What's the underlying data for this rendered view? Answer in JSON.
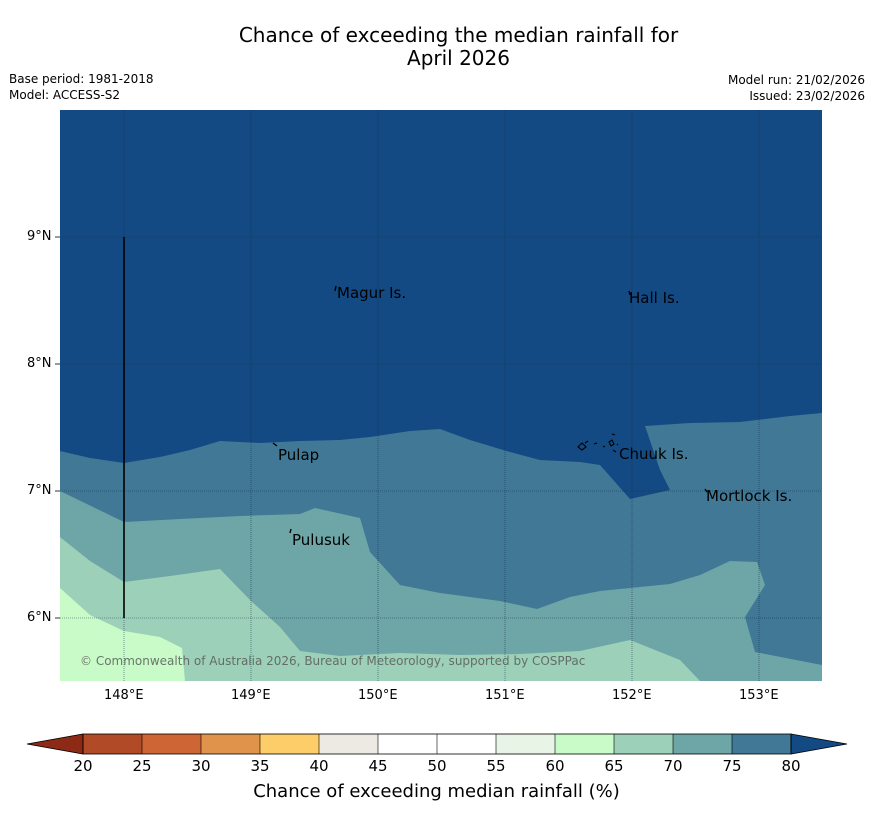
{
  "title": {
    "line1": "Chance of exceeding the median rainfall for",
    "line2": "April 2026"
  },
  "meta": {
    "base_period": "Base period: 1981-2018",
    "model": "Model: ACCESS-S2",
    "model_run": "Model run: 21/02/2026",
    "issued": "Issued: 23/02/2026"
  },
  "map": {
    "lat_ticks": [
      "9°N",
      "8°N",
      "7°N",
      "6°N"
    ],
    "lon_ticks": [
      "148°E",
      "149°E",
      "150°E",
      "151°E",
      "152°E",
      "153°E"
    ],
    "places": [
      "Magur Is.",
      "Hall Is.",
      "Pulap",
      "Chuuk Is.",
      "Mortlock Is.",
      "Pulusuk"
    ],
    "copyright": "© Commonwealth of Australia 2026, Bureau of Meteorology, supported by COSPPac",
    "colors": {
      "c80plus": "#134a84",
      "c75_80": "#417896",
      "c70_75": "#6ea5a6",
      "c65_70": "#9dd0b8",
      "c60_65": "#c8fbc8"
    }
  },
  "colorbar": {
    "ticks": [
      "20",
      "25",
      "30",
      "35",
      "40",
      "45",
      "50",
      "55",
      "60",
      "65",
      "70",
      "75",
      "80"
    ],
    "colors": [
      "#b04a27",
      "#cd6535",
      "#e0934b",
      "#fdcd6a",
      "#ede9e3",
      "#ffffff",
      "#ffffff",
      "#e8f4e6",
      "#c8fbc8",
      "#9dd0b8",
      "#6ea5a6",
      "#417896"
    ],
    "under_color": "#8c2a16",
    "over_color": "#134a84",
    "label": "Chance of exceeding median rainfall (%)"
  }
}
